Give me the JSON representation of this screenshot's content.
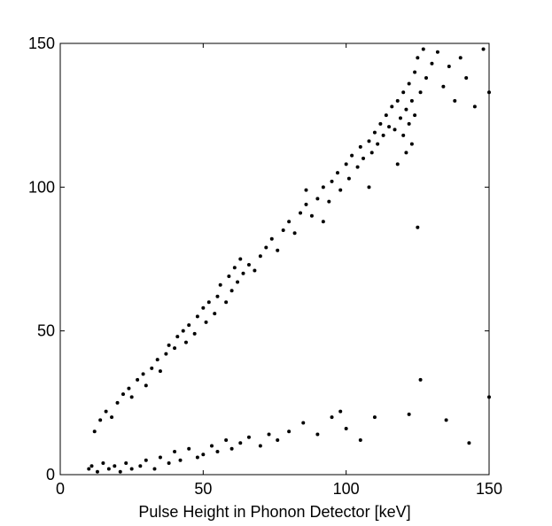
{
  "chart_data": {
    "type": "scatter",
    "xlabel": "Pulse Height in Phonon Detector [keV]",
    "xlim": [
      0,
      150
    ],
    "ylim": [
      0,
      150
    ],
    "xticks": [
      0,
      50,
      100,
      150
    ],
    "yticks": [
      0,
      50,
      100,
      150
    ],
    "color": "#000000",
    "x": [
      12,
      14,
      16,
      18,
      20,
      22,
      24,
      25,
      27,
      29,
      30,
      32,
      34,
      35,
      37,
      38,
      40,
      41,
      43,
      44,
      45,
      47,
      48,
      50,
      51,
      52,
      54,
      55,
      56,
      58,
      59,
      60,
      61,
      62,
      63,
      64,
      66,
      68,
      70,
      72,
      74,
      76,
      78,
      80,
      82,
      84,
      86,
      88,
      90,
      92,
      94,
      95,
      97,
      98,
      100,
      101,
      102,
      104,
      105,
      106,
      108,
      109,
      110,
      111,
      112,
      113,
      114,
      115,
      116,
      117,
      118,
      119,
      120,
      120,
      121,
      121,
      122,
      122,
      123,
      123,
      124,
      124,
      125,
      126,
      127,
      128,
      130,
      132,
      134,
      136,
      138,
      140,
      142,
      145,
      148,
      150,
      118,
      108,
      92,
      86,
      10,
      11,
      13,
      15,
      17,
      19,
      21,
      23,
      25,
      28,
      30,
      33,
      35,
      38,
      40,
      42,
      45,
      48,
      50,
      53,
      55,
      58,
      60,
      63,
      66,
      70,
      73,
      76,
      80,
      85,
      90,
      95,
      98,
      100,
      105,
      110,
      122,
      126,
      135,
      143,
      150,
      125
    ],
    "y": [
      15,
      19,
      22,
      20,
      25,
      28,
      30,
      27,
      33,
      35,
      31,
      37,
      40,
      36,
      42,
      45,
      44,
      48,
      50,
      46,
      52,
      49,
      55,
      58,
      53,
      60,
      56,
      62,
      66,
      60,
      69,
      64,
      72,
      67,
      75,
      70,
      73,
      71,
      76,
      79,
      82,
      78,
      85,
      88,
      84,
      91,
      94,
      90,
      96,
      100,
      95,
      102,
      105,
      99,
      108,
      103,
      111,
      107,
      114,
      110,
      116,
      112,
      119,
      115,
      122,
      118,
      125,
      121,
      128,
      120,
      130,
      124,
      133,
      118,
      127,
      112,
      136,
      122,
      130,
      115,
      140,
      125,
      145,
      133,
      148,
      138,
      143,
      147,
      135,
      142,
      130,
      145,
      138,
      128,
      148,
      133,
      108,
      100,
      88,
      99,
      2,
      3,
      1,
      4,
      2,
      3,
      1,
      4,
      2,
      3,
      5,
      2,
      6,
      4,
      8,
      5,
      9,
      6,
      7,
      10,
      8,
      12,
      9,
      11,
      13,
      10,
      14,
      12,
      15,
      18,
      14,
      20,
      22,
      16,
      12,
      20,
      21,
      33,
      19,
      11,
      27,
      86
    ]
  }
}
